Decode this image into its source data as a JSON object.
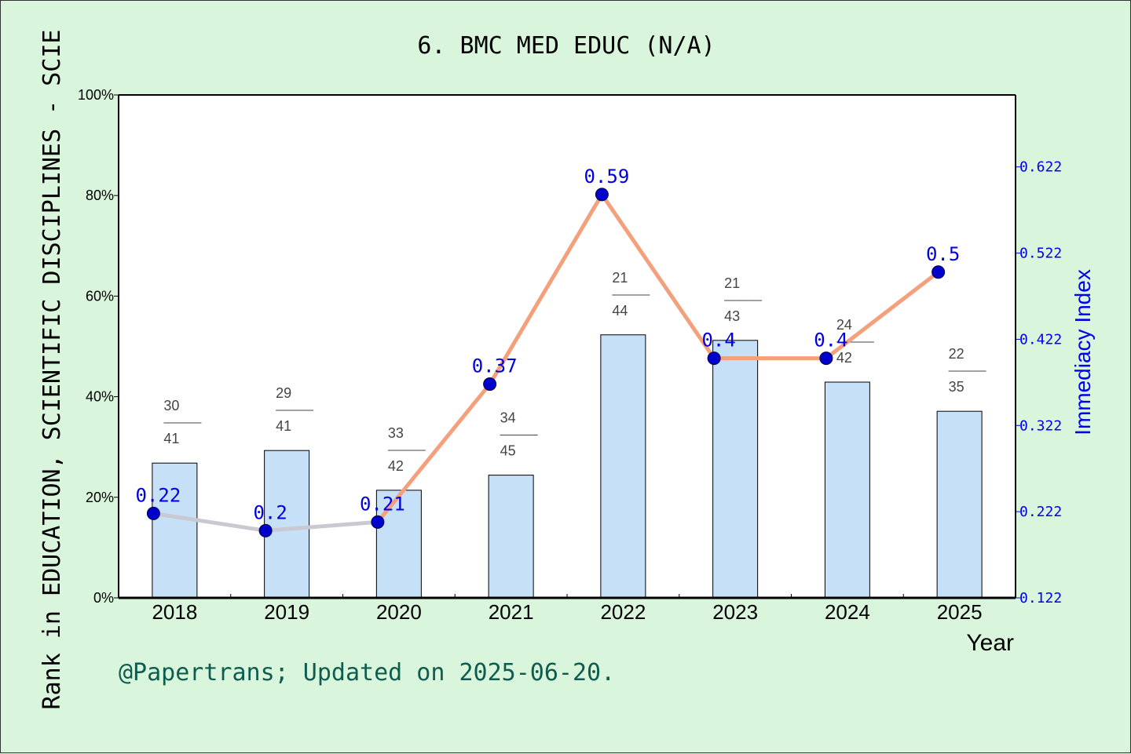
{
  "chart_data": {
    "type": "bar",
    "title": "6. BMC MED EDUC (N/A)",
    "xlabel": "Year",
    "ylabel_left": "Rank in EDUCATION, SCIENTIFIC DISCIPLINES - SCIE",
    "ylabel_right": "Immediacy Index",
    "categories": [
      "2018",
      "2019",
      "2020",
      "2021",
      "2022",
      "2023",
      "2024",
      "2025"
    ],
    "left_axis": {
      "ylim": [
        0,
        100
      ],
      "ticks": [
        "0%",
        "20%",
        "40%",
        "60%",
        "80%",
        "100%"
      ]
    },
    "right_axis": {
      "ylim": [
        0.122,
        0.7055
      ],
      "ticks": [
        "0.122",
        "0.222",
        "0.322",
        "0.422",
        "0.522",
        "0.622"
      ]
    },
    "series": [
      {
        "name": "Rank percentile",
        "type": "bar",
        "axis": "left",
        "values": [
          26.8,
          29.3,
          21.4,
          24.4,
          52.3,
          51.2,
          42.9,
          37.1
        ],
        "rank_labels": [
          {
            "rank": "30",
            "total": "41"
          },
          {
            "rank": "29",
            "total": "41"
          },
          {
            "rank": "33",
            "total": "42"
          },
          {
            "rank": "34",
            "total": "45"
          },
          {
            "rank": "21",
            "total": "44"
          },
          {
            "rank": "21",
            "total": "43"
          },
          {
            "rank": "24",
            "total": "42"
          },
          {
            "rank": "22",
            "total": "35"
          }
        ]
      },
      {
        "name": "Immediacy Index",
        "type": "line",
        "axis": "right",
        "values": [
          0.22,
          0.2,
          0.21,
          0.37,
          0.59,
          0.4,
          0.4,
          0.5
        ],
        "point_labels": [
          "0.22",
          "0.2",
          "0.21",
          "0.37",
          "0.59",
          "0.4",
          "0.4",
          "0.5"
        ]
      }
    ],
    "grid": false,
    "legend": "none",
    "colors": {
      "bar_fill": "#c6e0f7",
      "bar_stroke": "#000000",
      "line": "#f4a07c",
      "line_faded": "#c9c9d2",
      "marker": "#0000cc",
      "point_label": "#0000dd",
      "right_axis": "#0000ee",
      "footer": "#0d5c4f",
      "background": "#d9f6dc",
      "plot_background": "#ffffff"
    }
  },
  "footer": "@Papertrans; Updated on 2025-06-20."
}
